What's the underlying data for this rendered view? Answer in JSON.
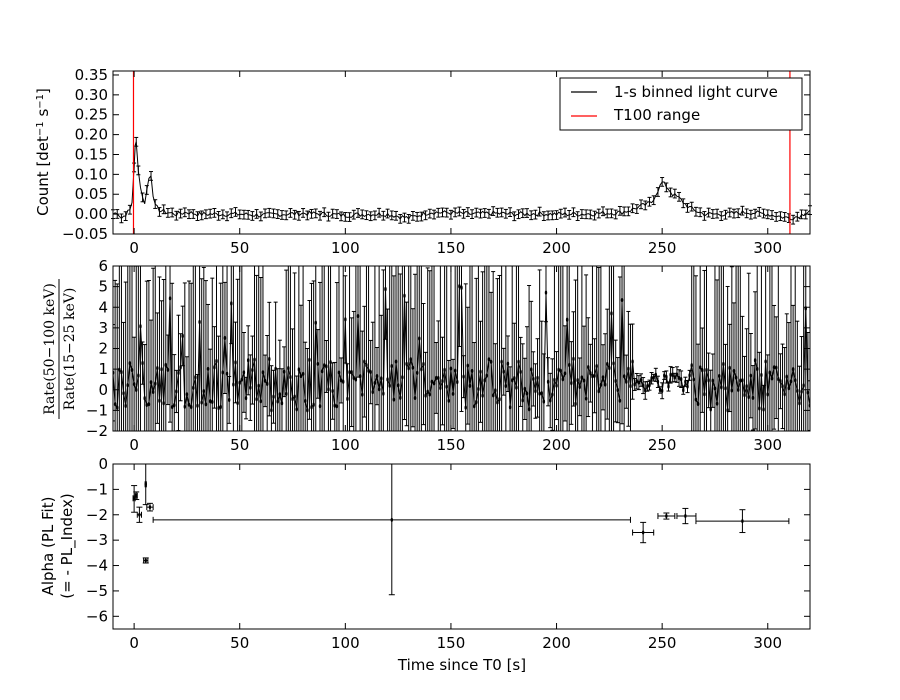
{
  "chart_data": [
    {
      "id": "panel1",
      "type": "line",
      "xlabel": "",
      "ylabel": "Count [det⁻¹ s⁻¹]",
      "xlim": [
        -10,
        320
      ],
      "ylim": [
        -0.05,
        0.36
      ],
      "xticks": [
        0,
        50,
        100,
        150,
        200,
        250,
        300
      ],
      "yticks": [
        -0.05,
        0.0,
        0.05,
        0.1,
        0.15,
        0.2,
        0.25,
        0.3,
        0.35
      ],
      "ytick_labels": [
        "−0.05",
        "0.00",
        "0.05",
        "0.10",
        "0.15",
        "0.20",
        "0.25",
        "0.30",
        "0.35"
      ],
      "legend": {
        "placement": "top-right",
        "entries": [
          {
            "label": "1-s binned light curve",
            "color": "#000000"
          },
          {
            "label": "T100 range",
            "color": "#ff0000"
          }
        ]
      },
      "t100_range": [
        -0.3,
        310.5
      ],
      "series": [
        {
          "name": "1-s binned light curve",
          "color": "#000000",
          "error": 0.011,
          "x": [
            -10,
            -8,
            -6,
            -4,
            -2,
            -1,
            0,
            0.5,
            1,
            1.5,
            2,
            3,
            4,
            5,
            6,
            7,
            8,
            9,
            10,
            12,
            15,
            20,
            25,
            30,
            40,
            50,
            60,
            70,
            80,
            90,
            100,
            110,
            120,
            130,
            140,
            150,
            160,
            170,
            180,
            190,
            200,
            210,
            220,
            230,
            235,
            240,
            243,
            245,
            247,
            249,
            250,
            252,
            255,
            258,
            260,
            262,
            265,
            270,
            280,
            290,
            300,
            305,
            310,
            315,
            320
          ],
          "y": [
            0.0,
            0.005,
            -0.01,
            0.0,
            0.01,
            0.03,
            0.12,
            0.17,
            0.18,
            0.15,
            0.11,
            0.07,
            0.04,
            0.03,
            0.06,
            0.09,
            0.1,
            0.05,
            0.02,
            0.01,
            0.005,
            0.0,
            0.005,
            0.0,
            0.0,
            0.0,
            -0.003,
            0.0,
            0.002,
            0.0,
            -0.003,
            0.0,
            0.0,
            -0.01,
            0.005,
            0.003,
            0.0,
            0.002,
            0.0,
            0.001,
            0.0,
            0.0,
            0.002,
            0.004,
            0.01,
            0.02,
            0.025,
            0.03,
            0.05,
            0.07,
            0.08,
            0.07,
            0.05,
            0.04,
            0.03,
            0.02,
            0.01,
            0.0,
            0.0,
            0.005,
            0.0,
            -0.005,
            -0.01,
            -0.005,
            0.01
          ]
        }
      ]
    },
    {
      "id": "panel2",
      "type": "scatter",
      "xlabel": "",
      "ylabel": "Rate(50−100 keV) / Rate(15−25 keV)",
      "ylabel_numerator": "Rate(50−100 keV)",
      "ylabel_denominator": "Rate(15−25 keV)",
      "xlim": [
        -10,
        320
      ],
      "ylim": [
        -2,
        6
      ],
      "xticks": [
        0,
        50,
        100,
        150,
        200,
        250,
        300
      ],
      "yticks": [
        -2,
        -1,
        0,
        1,
        2,
        3,
        4,
        5,
        6
      ],
      "ytick_labels": [
        "−2",
        "−1",
        "0",
        "1",
        "2",
        "3",
        "4",
        "5",
        "6"
      ],
      "series": [
        {
          "name": "",
          "color": "#000000",
          "note_x_range": [
            -10,
            320
          ],
          "values_mostly_within": [
            -1,
            1.5
          ],
          "errors_large_outside": [
            [
              -10,
              235
            ],
            [
              265,
              320
            ]
          ],
          "errors_small_inside": [
            237,
            263
          ]
        }
      ]
    },
    {
      "id": "panel3",
      "type": "scatter",
      "xlabel": "Time since T0 [s]",
      "ylabel": "Alpha (PL Fit)\n(= - PL_Index)",
      "ylabel_line1": "Alpha (PL Fit)",
      "ylabel_line2": "(= - PL_Index)",
      "xlim": [
        -10,
        320
      ],
      "ylim": [
        -6.5,
        0
      ],
      "xticks": [
        0,
        50,
        100,
        150,
        200,
        250,
        300
      ],
      "yticks": [
        0,
        -1,
        -2,
        -3,
        -4,
        -5,
        -6
      ],
      "ytick_labels": [
        "0",
        "−1",
        "−2",
        "−3",
        "−4",
        "−5",
        "−6"
      ],
      "series": [
        {
          "name": "",
          "color": "#000000",
          "points": [
            {
              "x": 0.0,
              "xerr": [
                0.5,
                0.5
              ],
              "y": -1.35,
              "yerr": [
                0.55,
                0.5
              ]
            },
            {
              "x": 1.0,
              "xerr": [
                0.5,
                0.5
              ],
              "y": -1.25,
              "yerr": [
                0.15,
                0.15
              ]
            },
            {
              "x": 2.5,
              "xerr": [
                1.0,
                1.0
              ],
              "y": -2.0,
              "yerr": [
                0.3,
                0.3
              ]
            },
            {
              "x": 5.5,
              "xerr": [
                1.0,
                1.0
              ],
              "y": -3.8,
              "yerr": [
                0.1,
                0.1
              ]
            },
            {
              "x": 5.5,
              "xerr": [
                0.3,
                0.3
              ],
              "y": -0.8,
              "yerr": [
                0.8,
                0.8
              ]
            },
            {
              "x": 7.5,
              "xerr": [
                1.5,
                1.5
              ],
              "y": -1.7,
              "yerr": [
                0.15,
                0.15
              ]
            },
            {
              "x": 122,
              "xerr": [
                113,
                113
              ],
              "y": -2.2,
              "yerr": [
                2.95,
                2.2
              ]
            },
            {
              "x": 241,
              "xerr": [
                5,
                5
              ],
              "y": -2.7,
              "yerr": [
                0.4,
                0.4
              ]
            },
            {
              "x": 252,
              "xerr": [
                4,
                4
              ],
              "y": -2.05,
              "yerr": [
                0.12,
                0.12
              ]
            },
            {
              "x": 261,
              "xerr": [
                4,
                5
              ],
              "y": -2.05,
              "yerr": [
                0.3,
                0.3
              ]
            },
            {
              "x": 288,
              "xerr": [
                22,
                22
              ],
              "y": -2.25,
              "yerr": [
                0.45,
                0.45
              ]
            }
          ]
        }
      ]
    }
  ]
}
